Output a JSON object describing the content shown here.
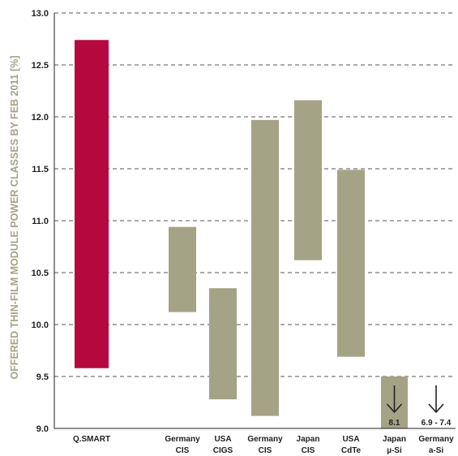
{
  "chart_data": {
    "type": "bar",
    "subtype": "floating-range",
    "ylabel": "OFFERED THIN-FILM MODULE POWER CLASSES BY FEB 2011 [%]",
    "ylim": [
      9.0,
      13.0
    ],
    "yticks": [
      "9.0",
      "9.5",
      "10.0",
      "10.5",
      "11.0",
      "11.5",
      "12.0",
      "12.5",
      "13.0"
    ],
    "grid": true,
    "colors": {
      "highlight": "#b5083e",
      "default": "#a5a385",
      "grid": "#555555",
      "axis": "#222222"
    },
    "bars": [
      {
        "label": [
          "Q.SMART"
        ],
        "low": 9.58,
        "high": 12.74,
        "highlight": true
      },
      {
        "label": [
          "Germany",
          "CIS"
        ],
        "low": 10.12,
        "high": 10.94
      },
      {
        "label": [
          "USA",
          "CIGS"
        ],
        "low": 9.28,
        "high": 10.35
      },
      {
        "label": [
          "Germany",
          "CIS"
        ],
        "low": 9.12,
        "high": 11.97
      },
      {
        "label": [
          "Japan",
          "CIS"
        ],
        "low": 10.62,
        "high": 12.16
      },
      {
        "label": [
          "USA",
          "CdTe"
        ],
        "low": 9.69,
        "high": 11.49
      },
      {
        "label": [
          "Japan",
          "µ-Si"
        ],
        "low": 9.0,
        "high": 9.5,
        "arrow": true,
        "note": "8.1"
      },
      {
        "label": [
          "Germany",
          "a-Si"
        ],
        "arrow": true,
        "note": "6.9 - 7.4"
      }
    ]
  }
}
